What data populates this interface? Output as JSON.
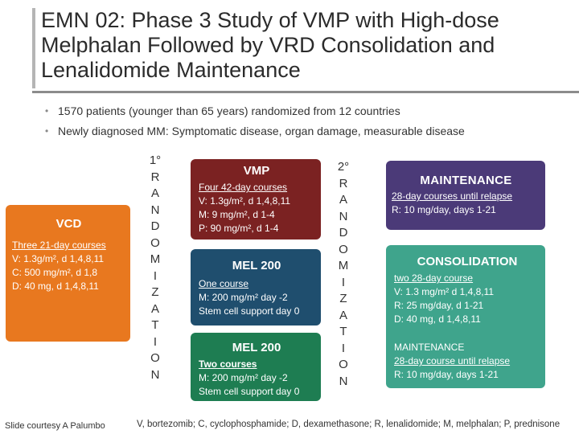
{
  "title": "EMN 02: Phase 3 Study of VMP with High-dose Melphalan Followed by VRD Consolidation and Lenalidomide Maintenance",
  "bullets": [
    "1570 patients (younger than 65 years) randomized from 12 countries",
    "Newly diagnosed MM: Symptomatic disease, organ damage, measurable disease"
  ],
  "vcd": {
    "heading": "VCD",
    "line1": "Three 21-day courses",
    "line2": "V: 1.3g/m², d 1,4,8,11",
    "line3": "C: 500 mg/m², d 1,8",
    "line4": "D: 40 mg, d 1,4,8,11"
  },
  "randomization1": [
    "1°",
    "R",
    "A",
    "N",
    "D",
    "O",
    "M",
    "I",
    "Z",
    "A",
    "T",
    "I",
    "O",
    "N"
  ],
  "randomization2": [
    "2°",
    "R",
    "A",
    "N",
    "D",
    "O",
    "M",
    "I",
    "Z",
    "A",
    "T",
    "I",
    "O",
    "N"
  ],
  "vmp": {
    "heading": "VMP",
    "line1": "Four 42-day courses",
    "line2": "V: 1.3g/m², d 1,4,8,11",
    "line3": "M: 9 mg/m², d 1-4",
    "line4": "P: 90 mg/m², d 1-4"
  },
  "mel1": {
    "heading": "MEL 200",
    "line1": "One course",
    "line2": "M: 200 mg/m² day -2",
    "line3": "Stem cell support day 0"
  },
  "mel2": {
    "heading": "MEL 200",
    "line1": "Two courses",
    "line2": "M: 200 mg/m² day -2",
    "line3": "Stem cell support day 0"
  },
  "maintenance": {
    "heading": "MAINTENANCE",
    "line1": "28-day courses until relapse",
    "line2": "R: 10 mg/day, days 1-21"
  },
  "consolidation": {
    "heading": "CONSOLIDATION",
    "line1": "two 28-day course",
    "line2": "V: 1.3 mg/m² d 1,4,8,11",
    "line3": "R: 25 mg/day, d 1-21",
    "line4": "D: 40 mg, d 1,4,8,11",
    "sub_heading": "MAINTENANCE",
    "sub_line1": "28-day course until relapse",
    "sub_line2": "R: 10 mg/day, days 1-21"
  },
  "footer": {
    "credit": "Slide courtesy A Palumbo",
    "abbreviations": "V, bortezomib; C, cyclophosphamide; D, dexamethasone; R, lenalidomide; M, melphalan; P, prednisone"
  }
}
